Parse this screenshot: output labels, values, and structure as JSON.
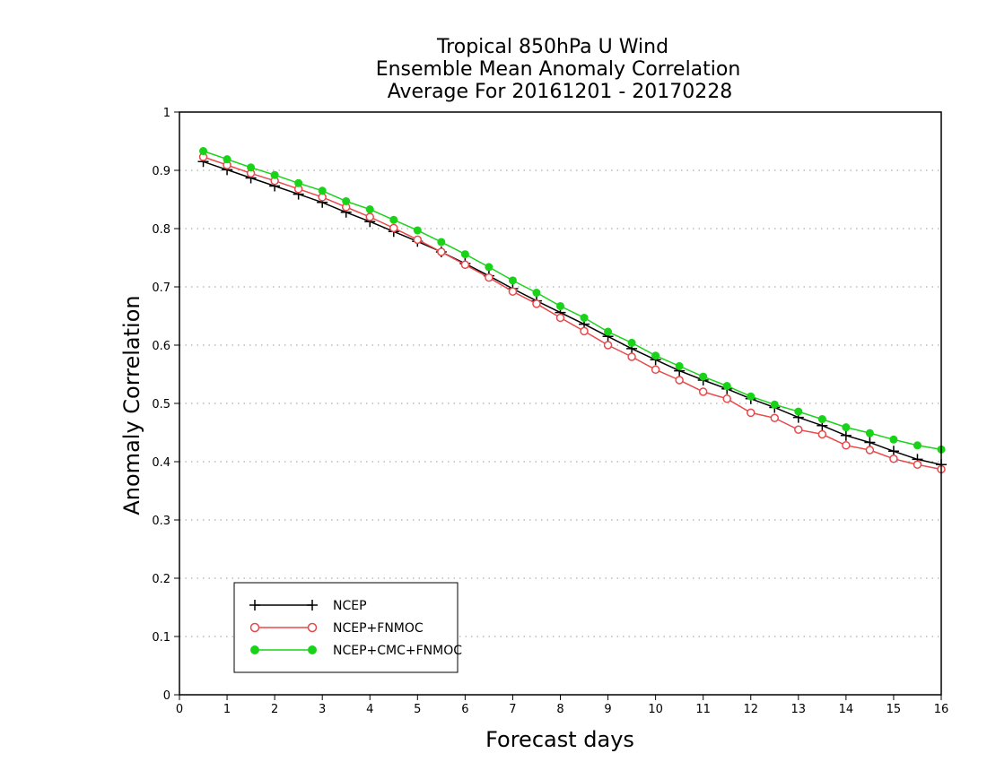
{
  "chart_data": {
    "type": "line",
    "title_lines": [
      "Tropical 850hPa U Wind",
      "Ensemble Mean Anomaly Correlation",
      "Average For 20161201 - 20170228"
    ],
    "xlabel": "Forecast days",
    "ylabel": "Anomaly Correlation",
    "xlim": [
      0,
      16
    ],
    "ylim": [
      0,
      1
    ],
    "xticks": [
      "0",
      "1",
      "2",
      "3",
      "4",
      "5",
      "6",
      "7",
      "8",
      "9",
      "10",
      "11",
      "12",
      "13",
      "14",
      "15",
      "16"
    ],
    "yticks": [
      "0",
      "0.1",
      "0.2",
      "0.3",
      "0.4",
      "0.5",
      "0.6",
      "0.7",
      "0.8",
      "0.9",
      "1"
    ],
    "grid": "dotted-horizontal",
    "legend_position": "bottom-left",
    "x": [
      0.5,
      1,
      1.5,
      2,
      2.5,
      3,
      3.5,
      4,
      4.5,
      5,
      5.5,
      6,
      6.5,
      7,
      7.5,
      8,
      8.5,
      9,
      9.5,
      10,
      10.5,
      11,
      11.5,
      12,
      12.5,
      13,
      13.5,
      14,
      14.5,
      15,
      15.5,
      16
    ],
    "series": [
      {
        "name": "NCEP",
        "color": "#000000",
        "marker": "plus",
        "values": [
          0.915,
          0.901,
          0.887,
          0.873,
          0.859,
          0.845,
          0.828,
          0.812,
          0.795,
          0.778,
          0.76,
          0.74,
          0.719,
          0.697,
          0.676,
          0.656,
          0.636,
          0.615,
          0.594,
          0.575,
          0.556,
          0.54,
          0.525,
          0.508,
          0.493,
          0.476,
          0.462,
          0.445,
          0.433,
          0.418,
          0.404,
          0.395
        ]
      },
      {
        "name": "NCEP+FNMOC",
        "color": "#e8494b",
        "marker": "open-circle",
        "values": [
          0.923,
          0.909,
          0.895,
          0.882,
          0.868,
          0.854,
          0.837,
          0.82,
          0.801,
          0.781,
          0.76,
          0.738,
          0.716,
          0.692,
          0.671,
          0.647,
          0.624,
          0.6,
          0.58,
          0.558,
          0.54,
          0.52,
          0.508,
          0.484,
          0.475,
          0.455,
          0.447,
          0.428,
          0.42,
          0.405,
          0.395,
          0.387
        ]
      },
      {
        "name": "NCEP+CMC+FNMOC",
        "color": "#19d319",
        "marker": "filled-circle",
        "values": [
          0.933,
          0.919,
          0.905,
          0.892,
          0.878,
          0.865,
          0.847,
          0.833,
          0.815,
          0.797,
          0.777,
          0.756,
          0.734,
          0.711,
          0.69,
          0.667,
          0.647,
          0.623,
          0.604,
          0.582,
          0.564,
          0.546,
          0.53,
          0.512,
          0.498,
          0.486,
          0.473,
          0.459,
          0.449,
          0.438,
          0.428,
          0.421
        ]
      }
    ]
  }
}
